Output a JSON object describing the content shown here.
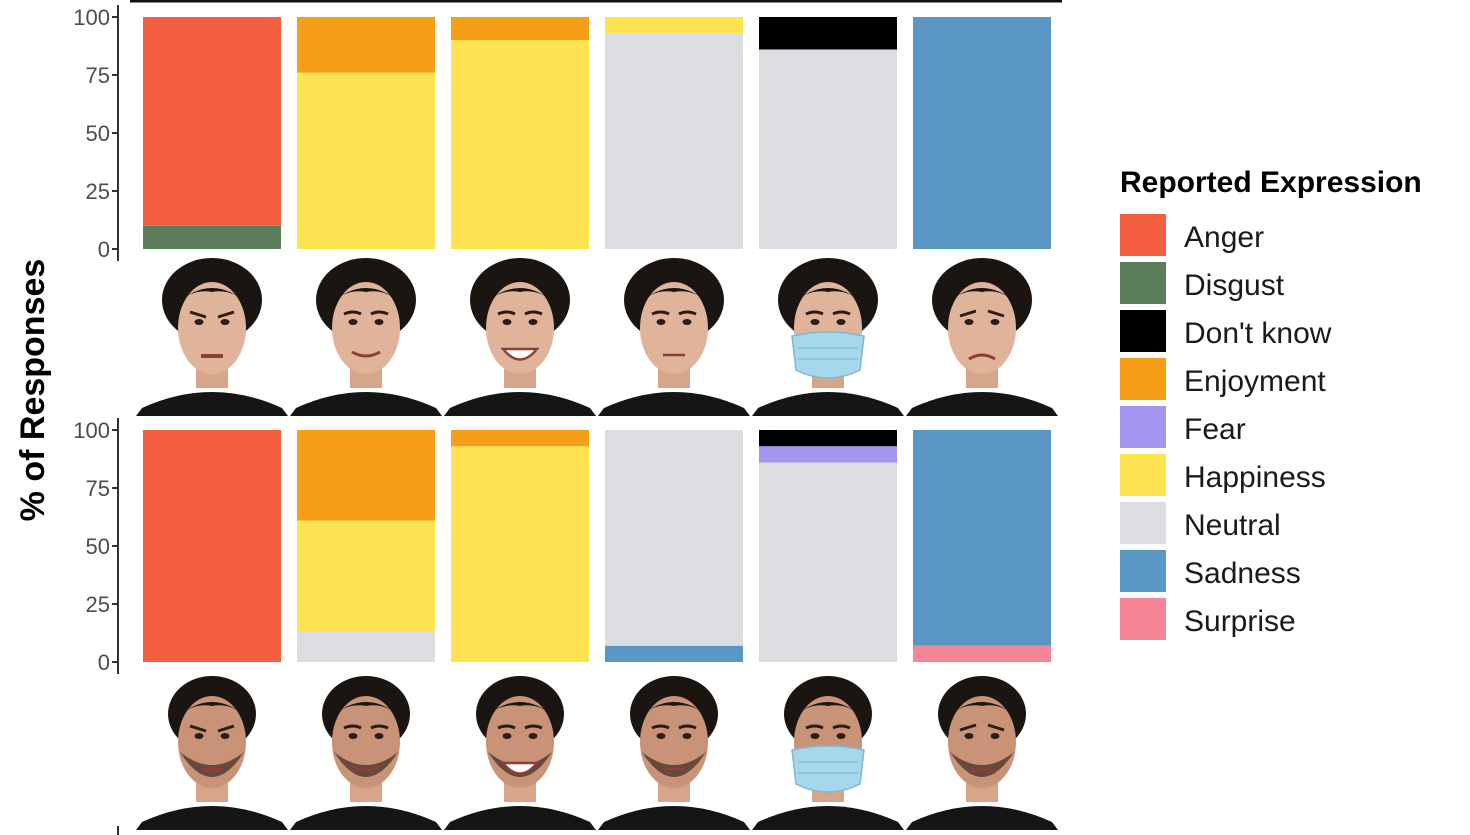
{
  "chart_data": {
    "type": "bar",
    "stacked": true,
    "ylabel": "% of Responses",
    "ylim": [
      0,
      100
    ],
    "yticks": [
      "0",
      "25",
      "50",
      "75",
      "100"
    ],
    "legend": {
      "title": "Reported Expression",
      "placement": "right",
      "entries": [
        {
          "key": "anger",
          "label": "Anger",
          "color": "#F4603F"
        },
        {
          "key": "disgust",
          "label": "Disgust",
          "color": "#5A7F5A"
        },
        {
          "key": "dontknow",
          "label": "Don't know",
          "color": "#000000"
        },
        {
          "key": "enjoyment",
          "label": "Enjoyment",
          "color": "#F79E18"
        },
        {
          "key": "fear",
          "label": "Fear",
          "color": "#A496F0"
        },
        {
          "key": "happiness",
          "label": "Happiness",
          "color": "#FCE34F"
        },
        {
          "key": "neutral",
          "label": "Neutral",
          "color": "#DDDEE1"
        },
        {
          "key": "sadness",
          "label": "Sadness",
          "color": "#5A97C4"
        },
        {
          "key": "surprise",
          "label": "Surprise",
          "color": "#F48698"
        }
      ]
    },
    "panels": [
      {
        "face": "female",
        "bars": [
          {
            "segments": [
              {
                "key": "disgust",
                "value": 10
              },
              {
                "key": "anger",
                "value": 90
              }
            ]
          },
          {
            "segments": [
              {
                "key": "happiness",
                "value": 76
              },
              {
                "key": "enjoyment",
                "value": 24
              }
            ]
          },
          {
            "segments": [
              {
                "key": "happiness",
                "value": 90
              },
              {
                "key": "enjoyment",
                "value": 10
              }
            ]
          },
          {
            "segments": [
              {
                "key": "neutral",
                "value": 93
              },
              {
                "key": "happiness",
                "value": 7
              }
            ]
          },
          {
            "segments": [
              {
                "key": "neutral",
                "value": 86
              },
              {
                "key": "dontknow",
                "value": 14
              }
            ]
          },
          {
            "segments": [
              {
                "key": "sadness",
                "value": 100
              }
            ]
          }
        ]
      },
      {
        "face": "male",
        "bars": [
          {
            "segments": [
              {
                "key": "anger",
                "value": 100
              }
            ]
          },
          {
            "segments": [
              {
                "key": "neutral",
                "value": 13
              },
              {
                "key": "happiness",
                "value": 48
              },
              {
                "key": "enjoyment",
                "value": 39
              }
            ]
          },
          {
            "segments": [
              {
                "key": "happiness",
                "value": 93
              },
              {
                "key": "enjoyment",
                "value": 7
              }
            ]
          },
          {
            "segments": [
              {
                "key": "sadness",
                "value": 7
              },
              {
                "key": "neutral",
                "value": 93
              }
            ]
          },
          {
            "segments": [
              {
                "key": "neutral",
                "value": 86
              },
              {
                "key": "fear",
                "value": 7
              },
              {
                "key": "dontknow",
                "value": 7
              }
            ]
          },
          {
            "segments": [
              {
                "key": "surprise",
                "value": 7
              },
              {
                "key": "sadness",
                "value": 93
              }
            ]
          }
        ]
      }
    ],
    "face_images": [
      {
        "face": "female",
        "expressions": [
          "anger-icon",
          "smile-icon",
          "broad-smile-icon",
          "neutral-icon",
          "masked-icon",
          "sad-icon"
        ]
      },
      {
        "face": "male",
        "expressions": [
          "anger-icon",
          "smile-icon",
          "broad-smile-icon",
          "neutral-icon",
          "masked-icon",
          "sad-icon"
        ]
      }
    ]
  }
}
